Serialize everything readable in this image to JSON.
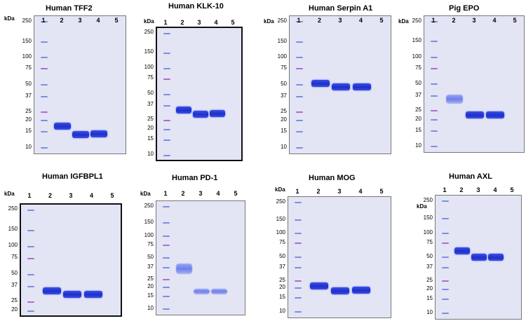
{
  "gels": [
    {
      "title": "Human TFF2",
      "kda_label": "kDa",
      "lanes": [
        "1",
        "2",
        "3",
        "4",
        "5"
      ],
      "markers": [
        {
          "label": "250",
          "kda": 250
        },
        {
          "label": "150",
          "kda": 150
        },
        {
          "label": "100",
          "kda": 100
        },
        {
          "label": "75",
          "kda": 75
        },
        {
          "label": "50",
          "kda": 50
        },
        {
          "label": "37",
          "kda": 37
        },
        {
          "label": "25",
          "kda": 25
        },
        {
          "label": "20",
          "kda": 20
        },
        {
          "label": "15",
          "kda": 15
        },
        {
          "label": "10",
          "kda": 10
        }
      ],
      "bands": [
        {
          "lane": 2,
          "kda": 17.5
        },
        {
          "lane": 3,
          "kda": 14
        },
        {
          "lane": 4,
          "kda": 14.2
        }
      ]
    },
    {
      "title": "Human KLK-10",
      "kda_label": "kDa",
      "lanes": [
        "1",
        "2",
        "3",
        "4",
        "5"
      ],
      "markers": [
        {
          "label": "250",
          "kda": 250
        },
        {
          "label": "150",
          "kda": 150
        },
        {
          "label": "100",
          "kda": 100
        },
        {
          "label": "75",
          "kda": 75
        },
        {
          "label": "50",
          "kda": 50
        },
        {
          "label": "37",
          "kda": 37
        },
        {
          "label": "25",
          "kda": 25
        },
        {
          "label": "20",
          "kda": 20
        },
        {
          "label": "15",
          "kda": 15
        },
        {
          "label": "10",
          "kda": 10
        }
      ],
      "bands": [
        {
          "lane": 2,
          "kda": 33
        },
        {
          "lane": 3,
          "kda": 30
        },
        {
          "lane": 4,
          "kda": 30.5
        }
      ]
    },
    {
      "title": "Human Serpin A1",
      "kda_label": "kDa",
      "lanes": [
        "1",
        "2",
        "3",
        "4",
        "5"
      ],
      "markers": [
        {
          "label": "250",
          "kda": 250
        },
        {
          "label": "150",
          "kda": 150
        },
        {
          "label": "100",
          "kda": 100
        },
        {
          "label": "75",
          "kda": 75
        },
        {
          "label": "50",
          "kda": 50
        },
        {
          "label": "37",
          "kda": 37
        },
        {
          "label": "25",
          "kda": 25
        },
        {
          "label": "20",
          "kda": 20
        },
        {
          "label": "15",
          "kda": 15
        },
        {
          "label": "10",
          "kda": 10
        }
      ],
      "bands": [
        {
          "lane": 2,
          "kda": 52
        },
        {
          "lane": 3,
          "kda": 47
        },
        {
          "lane": 4,
          "kda": 47.5
        }
      ]
    },
    {
      "title": "Pig EPO",
      "kda_label": "kDa",
      "lanes": [
        "1",
        "2",
        "3",
        "4",
        "5"
      ],
      "markers": [
        {
          "label": "250",
          "kda": 250
        },
        {
          "label": "150",
          "kda": 150
        },
        {
          "label": "100",
          "kda": 100
        },
        {
          "label": "75",
          "kda": 75
        },
        {
          "label": "50",
          "kda": 50
        },
        {
          "label": "37",
          "kda": 37
        },
        {
          "label": "25",
          "kda": 25
        },
        {
          "label": "20",
          "kda": 20
        },
        {
          "label": "15",
          "kda": 15
        },
        {
          "label": "10",
          "kda": 10
        }
      ],
      "bands": [
        {
          "lane": 3,
          "kda": 22.5
        },
        {
          "lane": 4,
          "kda": 22.5
        }
      ],
      "smears": [
        {
          "lane": 2,
          "kda_top": 38,
          "kda_bottom": 30
        }
      ]
    },
    {
      "title": "Human IGFBPL1",
      "kda_label": "kDa",
      "lanes": [
        "1",
        "2",
        "3",
        "4",
        "5"
      ],
      "markers": [
        {
          "label": "250",
          "kda": 250
        },
        {
          "label": "150",
          "kda": 150
        },
        {
          "label": "100",
          "kda": 100
        },
        {
          "label": "75",
          "kda": 75
        },
        {
          "label": "50",
          "kda": 50
        },
        {
          "label": "37",
          "kda": 37
        },
        {
          "label": "25",
          "kda": 25
        },
        {
          "label": "20",
          "kda": 20
        }
      ],
      "bands": [
        {
          "lane": 2,
          "kda": 33
        },
        {
          "lane": 3,
          "kda": 30.5
        },
        {
          "lane": 4,
          "kda": 30.5
        }
      ]
    },
    {
      "title": "Human PD-1",
      "kda_label": "kDa",
      "lanes": [
        "1",
        "2",
        "3",
        "4",
        "5"
      ],
      "markers": [
        {
          "label": "250",
          "kda": 250
        },
        {
          "label": "150",
          "kda": 150
        },
        {
          "label": "100",
          "kda": 100
        },
        {
          "label": "75",
          "kda": 75
        },
        {
          "label": "50",
          "kda": 50
        },
        {
          "label": "37",
          "kda": 37
        },
        {
          "label": "25",
          "kda": 25
        },
        {
          "label": "20",
          "kda": 20
        },
        {
          "label": "15",
          "kda": 15
        },
        {
          "label": "10",
          "kda": 10
        }
      ],
      "bands": [],
      "smears": [
        {
          "lane": 2,
          "kda_top": 42,
          "kda_bottom": 30
        },
        {
          "lane": 3,
          "kda_top": 19,
          "kda_bottom": 16
        },
        {
          "lane": 4,
          "kda_top": 19,
          "kda_bottom": 16
        }
      ]
    },
    {
      "title": "Human MOG",
      "kda_label": "kDa",
      "lanes": [
        "1",
        "2",
        "3",
        "4",
        "5"
      ],
      "markers": [
        {
          "label": "250",
          "kda": 250
        },
        {
          "label": "150",
          "kda": 150
        },
        {
          "label": "100",
          "kda": 100
        },
        {
          "label": "75",
          "kda": 75
        },
        {
          "label": "50",
          "kda": 50
        },
        {
          "label": "37",
          "kda": 37
        },
        {
          "label": "25",
          "kda": 25
        },
        {
          "label": "20",
          "kda": 20
        },
        {
          "label": "15",
          "kda": 15
        },
        {
          "label": "10",
          "kda": 10
        }
      ],
      "bands": [
        {
          "lane": 2,
          "kda": 21.5
        },
        {
          "lane": 3,
          "kda": 18.5
        },
        {
          "lane": 4,
          "kda": 19
        }
      ]
    },
    {
      "title": "Human AXL",
      "kda_label": "kDa",
      "lanes": [
        "1",
        "2",
        "3",
        "4",
        "5"
      ],
      "markers": [
        {
          "label": "250",
          "kda": 250
        },
        {
          "label": "150",
          "kda": 150
        },
        {
          "label": "100",
          "kda": 100
        },
        {
          "label": "75",
          "kda": 75
        },
        {
          "label": "50",
          "kda": 50
        },
        {
          "label": "37",
          "kda": 37
        },
        {
          "label": "25",
          "kda": 25
        },
        {
          "label": "20",
          "kda": 20
        },
        {
          "label": "15",
          "kda": 15
        },
        {
          "label": "10",
          "kda": 10
        }
      ],
      "bands": [
        {
          "lane": 2,
          "kda": 60
        },
        {
          "lane": 3,
          "kda": 50
        },
        {
          "lane": 4,
          "kda": 50
        }
      ]
    }
  ]
}
